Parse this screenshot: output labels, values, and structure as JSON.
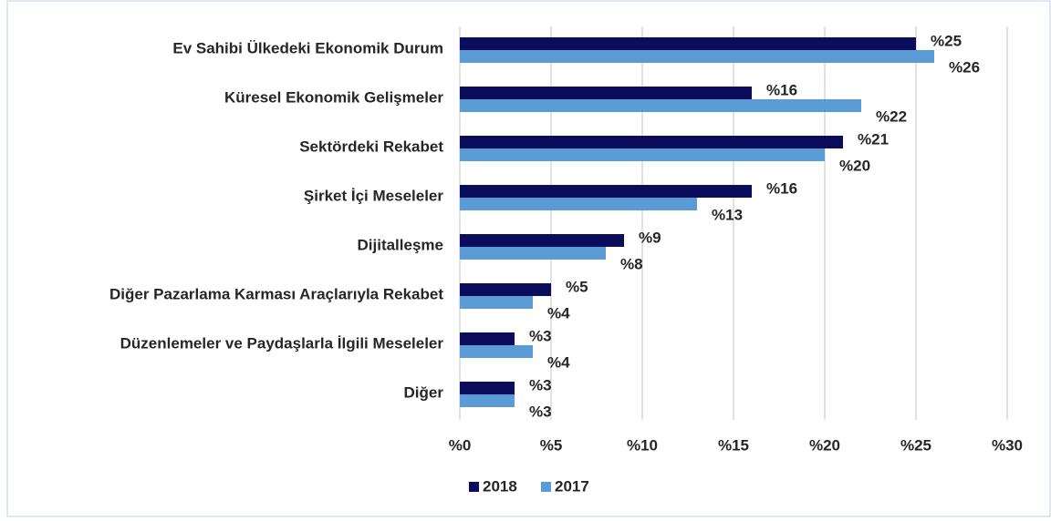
{
  "chart_data": {
    "type": "bar",
    "orientation": "horizontal",
    "categories": [
      "Ev Sahibi Ülkedeki Ekonomik Durum",
      "Küresel Ekonomik Gelişmeler",
      "Sektördeki Rekabet",
      "Şirket İçi Meseleler",
      "Dijitalleşme",
      "Diğer Pazarlama Karması Araçlarıyla Rekabet",
      "Düzenlemeler ve Paydaşlarla İlgili Meseleler",
      "Diğer"
    ],
    "series": [
      {
        "name": "2018",
        "color": "#0c0c5c",
        "values": [
          25,
          16,
          21,
          16,
          9,
          5,
          3,
          3
        ],
        "value_labels": [
          "%25",
          "%16",
          "%21",
          "%16",
          "%9",
          "%5",
          "%3",
          "%3"
        ]
      },
      {
        "name": "2017",
        "color": "#5b9bd5",
        "values": [
          26,
          22,
          20,
          13,
          8,
          4,
          4,
          3
        ],
        "value_labels": [
          "%26",
          "%22",
          "%20",
          "%13",
          "%8",
          "%4",
          "%4",
          "%3"
        ]
      }
    ],
    "xlim": [
      0,
      30
    ],
    "xticks": [
      {
        "value": 0,
        "label": "%0"
      },
      {
        "value": 5,
        "label": "%5"
      },
      {
        "value": 10,
        "label": "%10"
      },
      {
        "value": 15,
        "label": "%15"
      },
      {
        "value": 20,
        "label": "%20"
      },
      {
        "value": 25,
        "label": "%25"
      },
      {
        "value": 30,
        "label": "%30"
      }
    ],
    "grid": true,
    "legend": "bottom"
  }
}
